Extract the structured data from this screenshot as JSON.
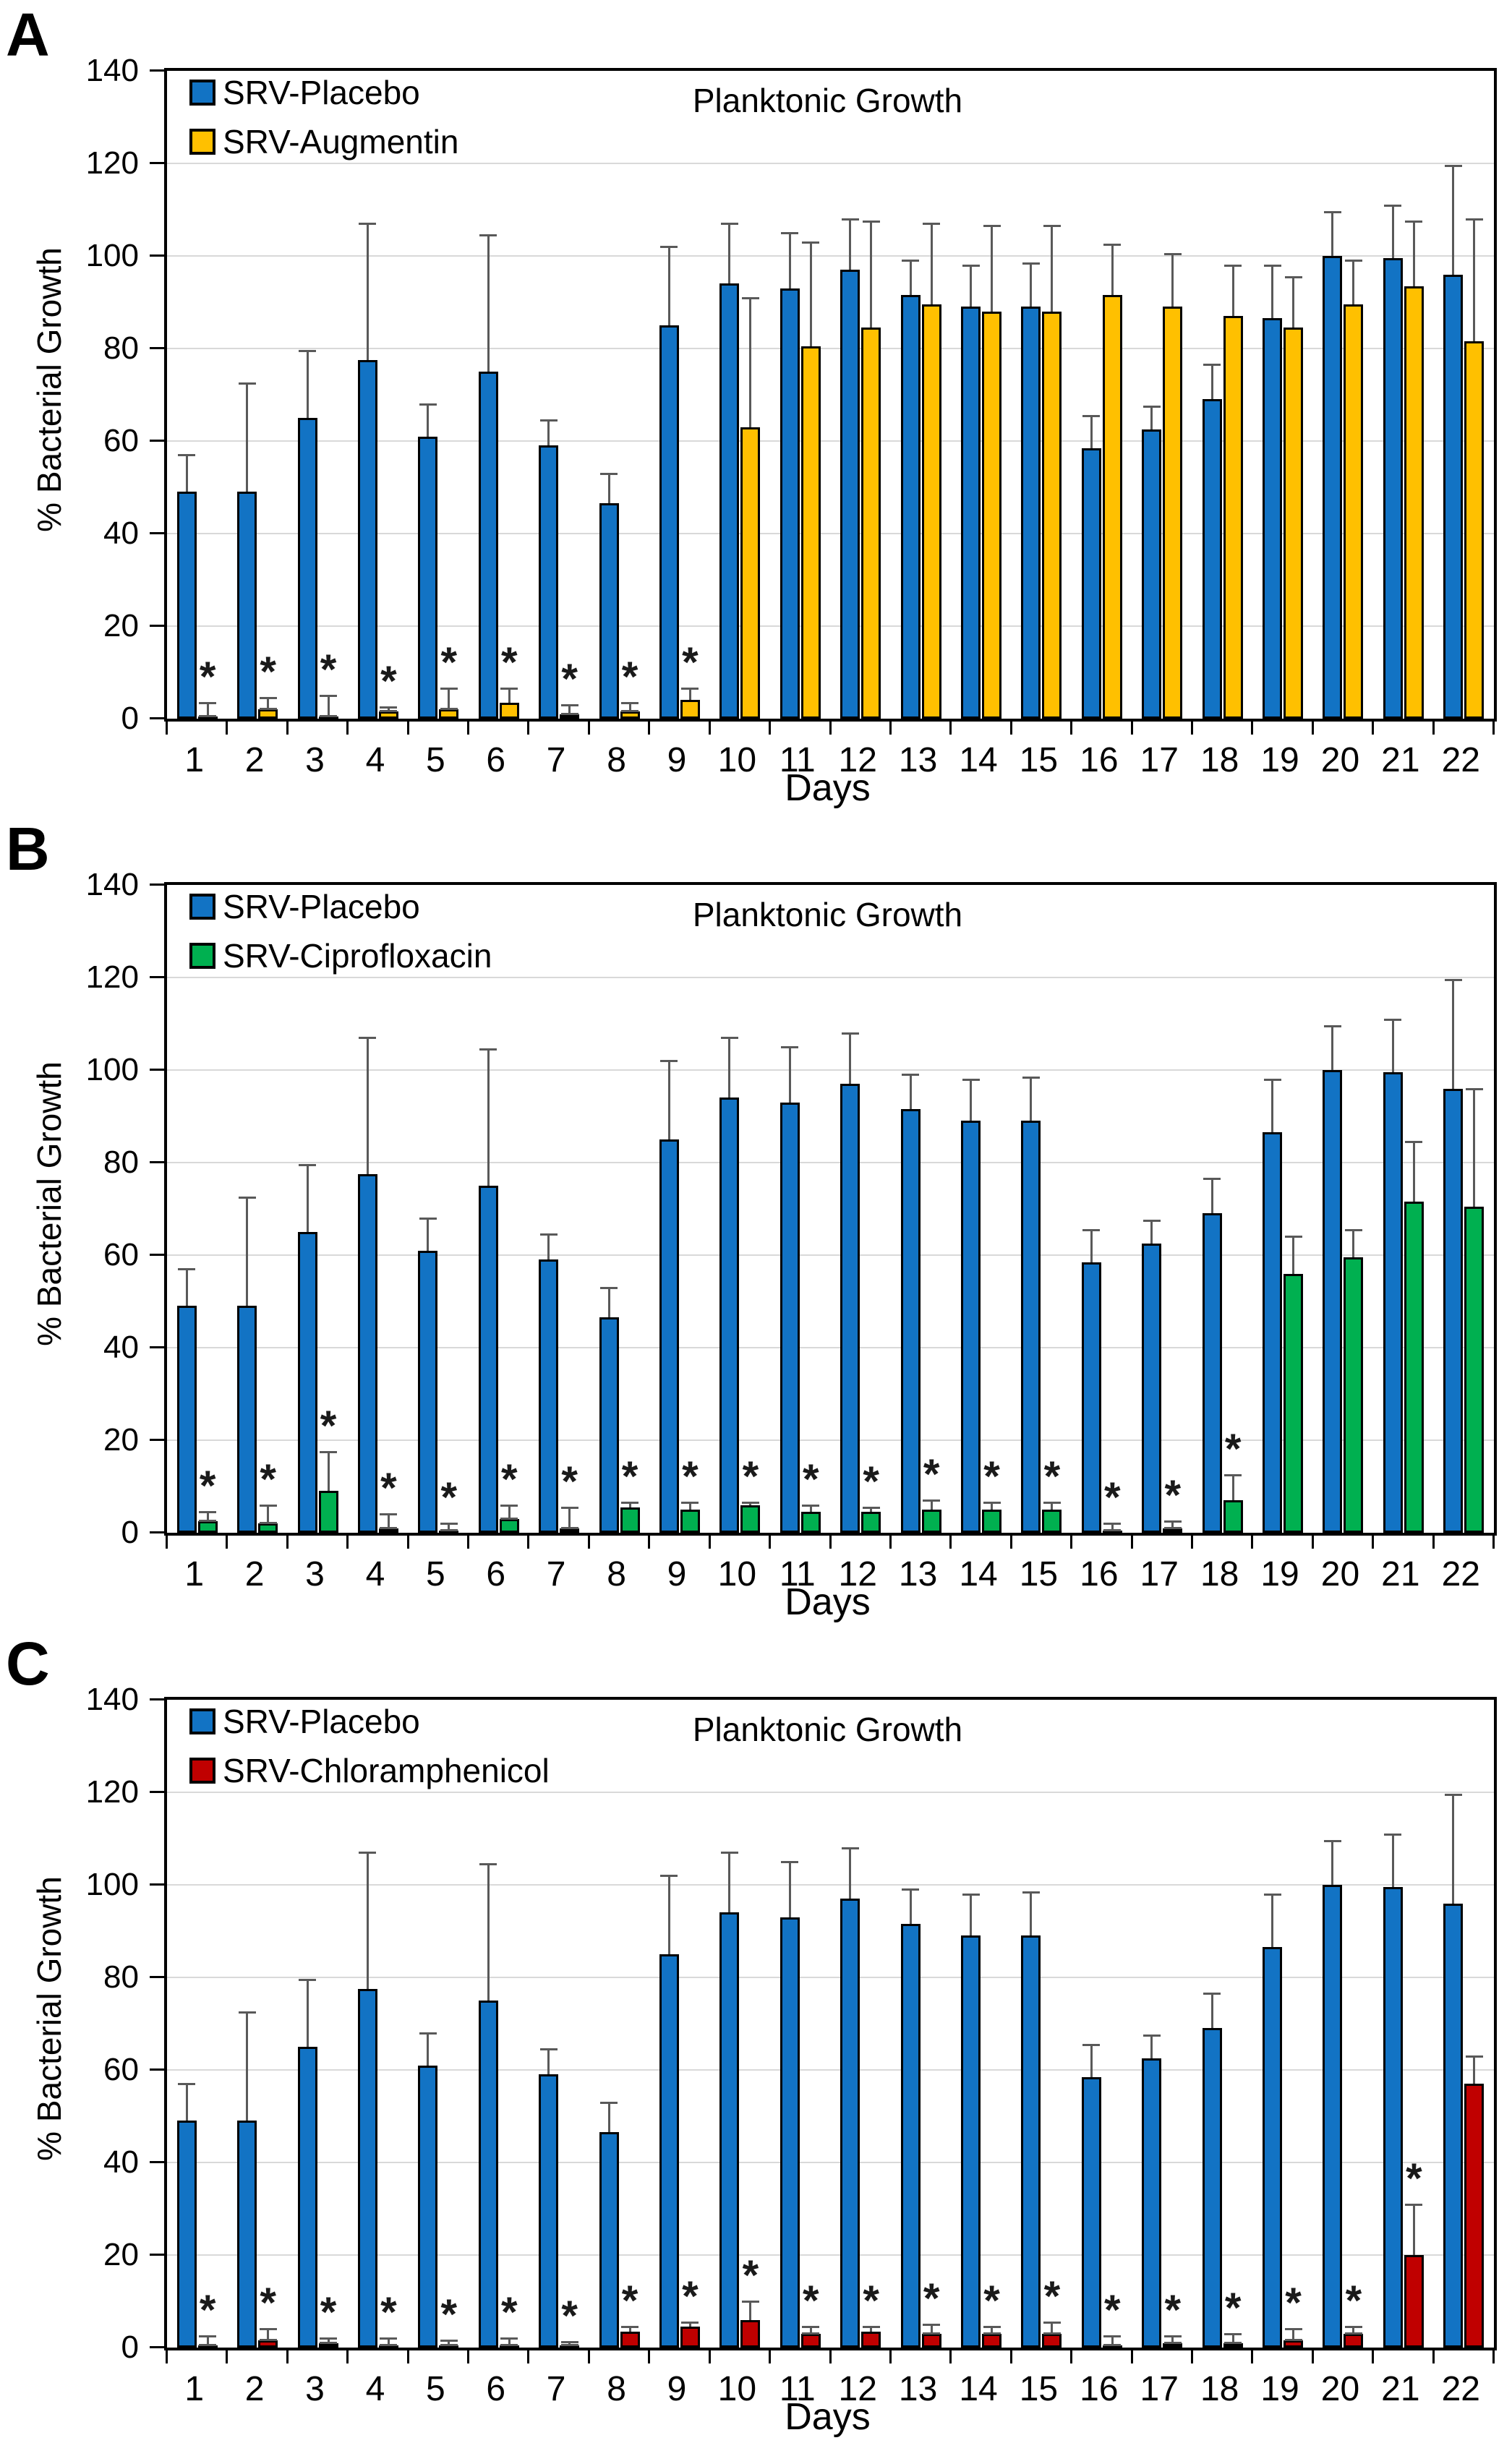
{
  "figure_title": "Planktonic Growth",
  "sig_marker": "*",
  "error_bar_color": "#595959",
  "gridline_color": "#d9d9d9",
  "chart_data": [
    {
      "type": "bar",
      "panel_letter": "A",
      "title": "Planktonic Growth",
      "xlabel": "Days",
      "ylabel": "% Bacterial Growth",
      "ylim": [
        0,
        140
      ],
      "yticks": [
        0,
        20,
        40,
        60,
        80,
        100,
        120,
        140
      ],
      "grid": "horizontal",
      "legend_position": "top-left-inside",
      "error_bars": "upper",
      "categories": [
        "1",
        "2",
        "3",
        "4",
        "5",
        "6",
        "7",
        "8",
        "9",
        "10",
        "11",
        "12",
        "13",
        "14",
        "15",
        "16",
        "17",
        "18",
        "19",
        "20",
        "21",
        "22"
      ],
      "series": [
        {
          "name": "SRV-Placebo",
          "color": "#1273C4",
          "values": [
            49,
            49,
            65,
            77.5,
            61,
            75,
            59,
            46.5,
            85,
            94,
            93,
            97,
            91.5,
            89,
            89,
            58.5,
            62.5,
            69,
            86.5,
            100,
            99.5,
            96
          ],
          "err": [
            8,
            23.5,
            14.5,
            29.5,
            7,
            29.5,
            5.5,
            6.5,
            17,
            13,
            12,
            11,
            7.5,
            9,
            9.5,
            7,
            5,
            7.5,
            11.5,
            9.5,
            11.5,
            23.5
          ],
          "sig": [
            false,
            false,
            false,
            false,
            false,
            false,
            false,
            false,
            false,
            false,
            false,
            false,
            false,
            false,
            false,
            false,
            false,
            false,
            false,
            false,
            false,
            false
          ]
        },
        {
          "name": "SRV-Augmentin",
          "color": "#FFC000",
          "values": [
            0.5,
            2,
            0.5,
            1.5,
            2,
            3.5,
            1,
            1.5,
            4,
            63,
            80.5,
            84.5,
            89.5,
            88,
            88,
            91.5,
            89,
            87,
            84.5,
            89.5,
            93.5,
            81.5
          ],
          "err": [
            3,
            2.5,
            4.5,
            1,
            4.5,
            3,
            2,
            2,
            2.5,
            28,
            22.5,
            23,
            17.5,
            18.5,
            18.5,
            11,
            11.5,
            11,
            11,
            9.5,
            14,
            26.5
          ],
          "sig": [
            true,
            true,
            true,
            true,
            true,
            true,
            true,
            true,
            true,
            false,
            false,
            false,
            false,
            false,
            false,
            false,
            false,
            false,
            false,
            false,
            false,
            false
          ]
        }
      ]
    },
    {
      "type": "bar",
      "panel_letter": "B",
      "title": "Planktonic Growth",
      "xlabel": "Days",
      "ylabel": "% Bacterial Growth",
      "ylim": [
        0,
        140
      ],
      "yticks": [
        0,
        20,
        40,
        60,
        80,
        100,
        120,
        140
      ],
      "grid": "horizontal",
      "legend_position": "top-left-inside",
      "error_bars": "upper",
      "categories": [
        "1",
        "2",
        "3",
        "4",
        "5",
        "6",
        "7",
        "8",
        "9",
        "10",
        "11",
        "12",
        "13",
        "14",
        "15",
        "16",
        "17",
        "18",
        "19",
        "20",
        "21",
        "22"
      ],
      "series": [
        {
          "name": "SRV-Placebo",
          "color": "#1273C4",
          "values": [
            49,
            49,
            65,
            77.5,
            61,
            75,
            59,
            46.5,
            85,
            94,
            93,
            97,
            91.5,
            89,
            89,
            58.5,
            62.5,
            69,
            86.5,
            100,
            99.5,
            96
          ],
          "err": [
            8,
            23.5,
            14.5,
            29.5,
            7,
            29.5,
            5.5,
            6.5,
            17,
            13,
            12,
            11,
            7.5,
            9,
            9.5,
            7,
            5,
            7.5,
            11.5,
            9.5,
            11.5,
            23.5
          ],
          "sig": [
            false,
            false,
            false,
            false,
            false,
            false,
            false,
            false,
            false,
            false,
            false,
            false,
            false,
            false,
            false,
            false,
            false,
            false,
            false,
            false,
            false,
            false
          ]
        },
        {
          "name": "SRV-Ciprofloxacin",
          "color": "#00B050",
          "values": [
            2.5,
            2,
            9,
            1,
            0.5,
            3,
            1,
            5.5,
            5,
            6,
            4.5,
            4.5,
            5,
            5,
            5,
            0.5,
            1,
            7,
            56,
            59.5,
            71.5,
            70.5
          ],
          "err": [
            2,
            4,
            8.5,
            3,
            1.5,
            3,
            4.5,
            1,
            1.5,
            0.5,
            1.5,
            1,
            2,
            1.5,
            1.5,
            1.5,
            1.5,
            5.5,
            8,
            6,
            13,
            25.5
          ],
          "sig": [
            true,
            true,
            true,
            true,
            true,
            true,
            true,
            true,
            true,
            true,
            true,
            true,
            true,
            true,
            true,
            true,
            true,
            true,
            false,
            false,
            false,
            false
          ]
        }
      ]
    },
    {
      "type": "bar",
      "panel_letter": "C",
      "title": "Planktonic Growth",
      "xlabel": "Days",
      "ylabel": "% Bacterial Growth",
      "ylim": [
        0,
        140
      ],
      "yticks": [
        0,
        20,
        40,
        60,
        80,
        100,
        120,
        140
      ],
      "grid": "horizontal",
      "legend_position": "top-left-inside",
      "error_bars": "upper",
      "categories": [
        "1",
        "2",
        "3",
        "4",
        "5",
        "6",
        "7",
        "8",
        "9",
        "10",
        "11",
        "12",
        "13",
        "14",
        "15",
        "16",
        "17",
        "18",
        "19",
        "20",
        "21",
        "22"
      ],
      "series": [
        {
          "name": "SRV-Placebo",
          "color": "#1273C4",
          "values": [
            49,
            49,
            65,
            77.5,
            61,
            75,
            59,
            46.5,
            85,
            94,
            93,
            97,
            91.5,
            89,
            89,
            58.5,
            62.5,
            69,
            86.5,
            100,
            99.5,
            96
          ],
          "err": [
            8,
            23.5,
            14.5,
            29.5,
            7,
            29.5,
            5.5,
            6.5,
            17,
            13,
            12,
            11,
            7.5,
            9,
            9.5,
            7,
            5,
            7.5,
            11.5,
            9.5,
            11.5,
            23.5
          ],
          "sig": [
            false,
            false,
            false,
            false,
            false,
            false,
            false,
            false,
            false,
            false,
            false,
            false,
            false,
            false,
            false,
            false,
            false,
            false,
            false,
            false,
            false,
            false
          ]
        },
        {
          "name": "SRV-Chloramphenicol",
          "color": "#C00000",
          "values": [
            0.5,
            1.5,
            1,
            0.5,
            0.5,
            0.5,
            0.5,
            3.5,
            4.5,
            6,
            3,
            3.5,
            3,
            3,
            3,
            0.5,
            1,
            1,
            1.5,
            3,
            20,
            57
          ],
          "err": [
            2,
            2.5,
            1,
            1.5,
            1,
            1.5,
            0.7,
            1,
            1,
            4,
            1.5,
            1,
            2,
            1.5,
            2.5,
            2,
            1.5,
            2,
            2.5,
            1.5,
            11,
            6
          ],
          "sig": [
            true,
            true,
            true,
            true,
            true,
            true,
            true,
            true,
            true,
            true,
            true,
            true,
            true,
            true,
            true,
            true,
            true,
            true,
            true,
            true,
            true,
            false
          ]
        }
      ]
    }
  ]
}
